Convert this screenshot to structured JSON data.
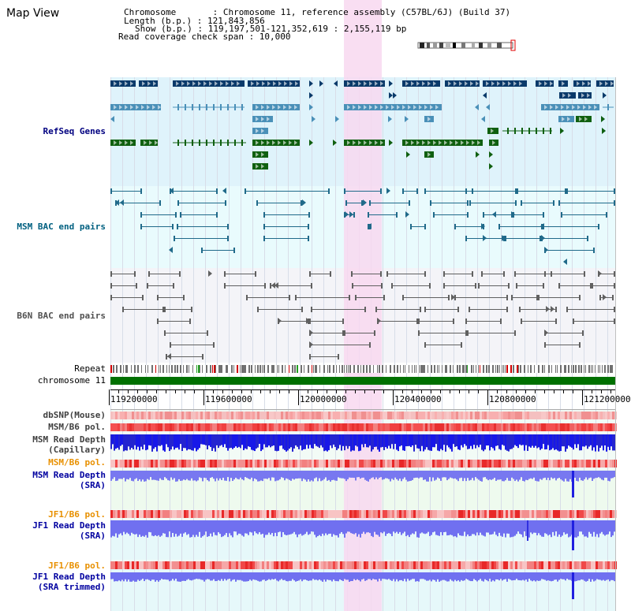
{
  "page": {
    "title": "Map View"
  },
  "info": {
    "chromosome_line": "Chromosome       : Chromosome 11, reference assembly (C57BL/6J) (Build 37)",
    "length_line": "Length (b.p.) : 121,843,856",
    "show_line": "Show (b.p.) : 119,197,501-121,352,619 : 2,155,119 bp",
    "span_line": "Read coverage check span : 10,000"
  },
  "tracks": {
    "refseq": {
      "label": "RefSeq Genes",
      "color": "#000080"
    },
    "msm_bac": {
      "label": "MSM BAC end pairs",
      "color": "#006080"
    },
    "b6n_bac": {
      "label": "B6N BAC end pairs",
      "color": "#505050"
    },
    "repeat": {
      "label": "Repeat"
    },
    "chromosome": {
      "label": "chromosome 11"
    }
  },
  "axis": {
    "ticks": [
      {
        "label": "119200000",
        "value": 119200000
      },
      {
        "label": "119600000",
        "value": 119600000
      },
      {
        "label": "120000000",
        "value": 120000000
      },
      {
        "label": "120400000",
        "value": 120400000
      },
      {
        "label": "120800000",
        "value": 120800000
      },
      {
        "label": "121200000",
        "value": 121200000
      }
    ],
    "range": [
      119197501,
      121352619
    ]
  },
  "coverage": [
    {
      "key": "dbsnp",
      "label_lines": [
        "dbSNP(Mouse)"
      ],
      "color": "#404040"
    },
    {
      "key": "msmb6a",
      "label_lines": [
        "MSM/B6 pol."
      ],
      "color": "#404040"
    },
    {
      "key": "msmcap",
      "label_lines": [
        "MSM Read Depth",
        "(Capillary)"
      ],
      "color": "#404040"
    },
    {
      "key": "msmb6b",
      "label_lines": [
        "MSM/B6 pol."
      ],
      "color": "#e89000"
    },
    {
      "key": "msmsra",
      "label_lines": [
        "MSM Read Depth",
        "(SRA)"
      ],
      "color": "#0000a0"
    },
    {
      "key": "jf1b6a",
      "label_lines": [
        "JF1/B6 pol."
      ],
      "color": "#e89000"
    },
    {
      "key": "jf1sra",
      "label_lines": [
        "JF1 Read Depth",
        "(SRA)"
      ],
      "color": "#0000a0"
    },
    {
      "key": "jf1b6b",
      "label_lines": [
        "JF1/B6 pol."
      ],
      "color": "#e89000"
    },
    {
      "key": "jf1trim",
      "label_lines": [
        "JF1 Read Depth",
        "(SRA trimmed)"
      ],
      "color": "#0000a0"
    }
  ],
  "colors": {
    "refseq_bg": "#dff3fb",
    "msm_bg": "#e9fbfd",
    "b6n_bg": "#f4f4f8",
    "highlight": "#f8d8f0",
    "gene_navy": "#0a3a6a",
    "gene_mid": "#4a90b8",
    "gene_green": "#106010",
    "chrom_green": "#007000",
    "depth_blue": "#1010e0",
    "depth_violet": "#7070f0",
    "pol_red": "#f06060"
  }
}
